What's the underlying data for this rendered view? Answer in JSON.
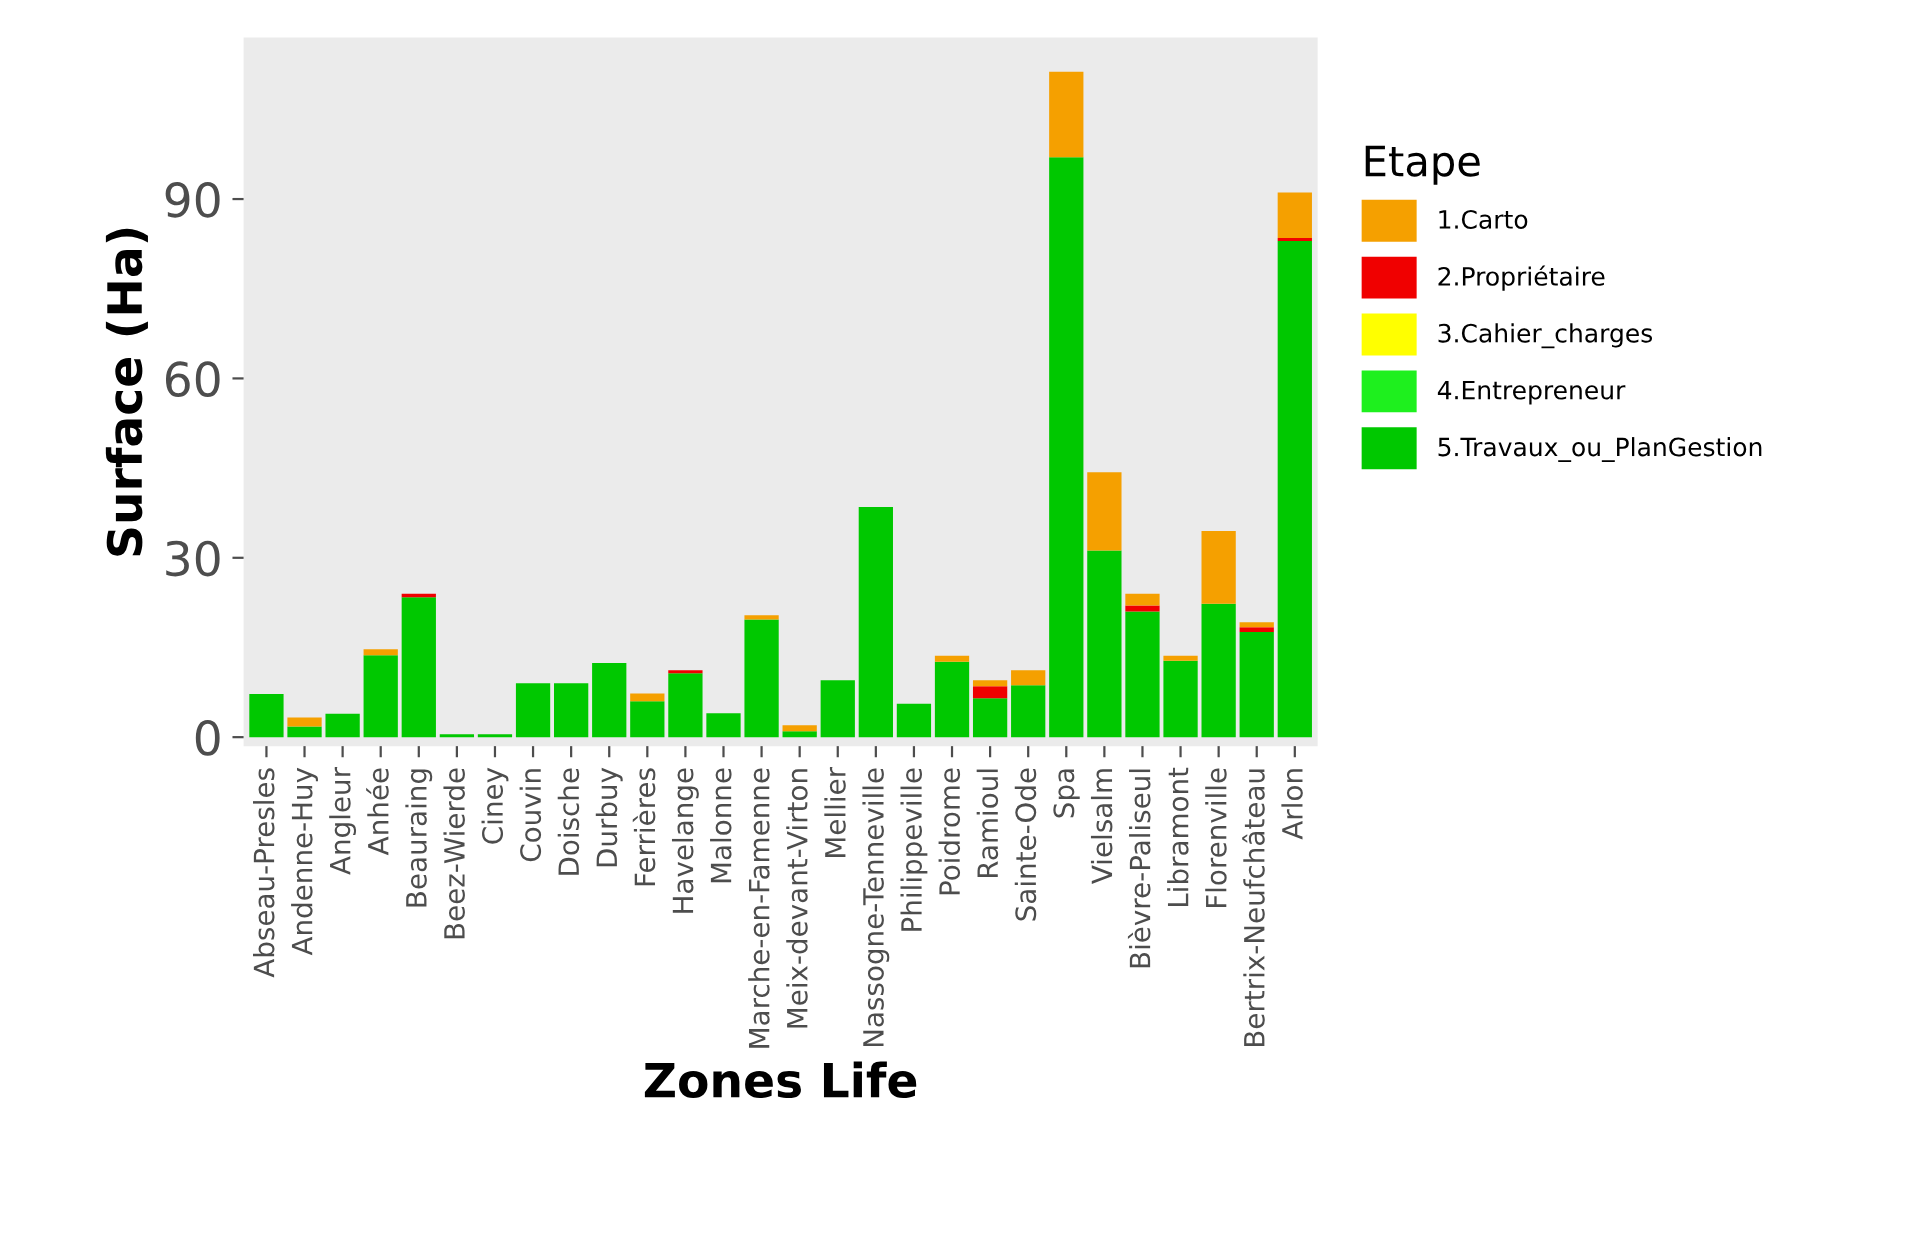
{
  "chart_data": {
    "type": "bar",
    "stacked": true,
    "xlabel": "Zones Life",
    "ylabel": "Surface (Ha)",
    "legend_title": "Etape",
    "legend": "right",
    "grid": false,
    "categories": [
      "Abseau-Presles",
      "Andenne-Huy",
      "Angleur",
      "Anhée",
      "Beauraing",
      "Beez-Wierde",
      "Ciney",
      "Couvin",
      "Doische",
      "Durbuy",
      "Ferrières",
      "Havelange",
      "Malonne",
      "Marche-en-Famenne",
      "Meix-devant-Virton",
      "Mellier",
      "Nassogne-Tenneville",
      "Philippeville",
      "Poidrome",
      "Ramioul",
      "Sainte-Ode",
      "Spa",
      "Vielsalm",
      "Bièvre-Paliseul",
      "Libramont",
      "Florenville",
      "Bertrix-Neufchâteau",
      "Arlon"
    ],
    "series": [
      {
        "name": "5.Travaux_ou_PlanGestion",
        "color": "#00c800",
        "values": [
          7.2,
          1.8,
          3.9,
          13.7,
          23.4,
          0.5,
          0.5,
          9,
          9,
          12.4,
          6,
          10.7,
          4,
          19.7,
          1,
          9.5,
          38.5,
          5.6,
          12.6,
          6.5,
          8.7,
          97,
          31.2,
          21,
          12.8,
          22.3,
          17.6,
          83
        ]
      },
      {
        "name": "4.Entrepreneur",
        "color": "#1ef01e",
        "values": [
          null,
          null,
          null,
          null,
          null,
          null,
          null,
          null,
          null,
          null,
          null,
          null,
          null,
          null,
          null,
          null,
          null,
          null,
          null,
          null,
          null,
          null,
          null,
          null,
          null,
          null,
          null,
          null
        ]
      },
      {
        "name": "3.Cahier_charges",
        "color": "#ffff00",
        "values": [
          null,
          null,
          null,
          null,
          null,
          null,
          null,
          null,
          null,
          null,
          null,
          null,
          null,
          null,
          null,
          null,
          null,
          null,
          null,
          null,
          null,
          null,
          null,
          null,
          null,
          null,
          null,
          null
        ]
      },
      {
        "name": "2.Propriétaire",
        "color": "#f00000",
        "values": [
          null,
          null,
          null,
          null,
          0.6,
          null,
          null,
          null,
          null,
          null,
          null,
          0.5,
          null,
          null,
          null,
          null,
          null,
          null,
          null,
          2,
          null,
          null,
          null,
          1,
          null,
          null,
          0.8,
          0.5
        ]
      },
      {
        "name": "1.Carto",
        "color": "#f5a000",
        "values": [
          null,
          1.5,
          null,
          1,
          null,
          null,
          null,
          null,
          null,
          null,
          1.3,
          null,
          null,
          0.7,
          1,
          null,
          null,
          null,
          1,
          1,
          2.5,
          14.3,
          13.1,
          2,
          0.8,
          12.2,
          0.8,
          7.6
        ]
      }
    ],
    "ylim": [
      -1.5,
      117
    ],
    "yticks": [
      0,
      30,
      60,
      90
    ]
  }
}
